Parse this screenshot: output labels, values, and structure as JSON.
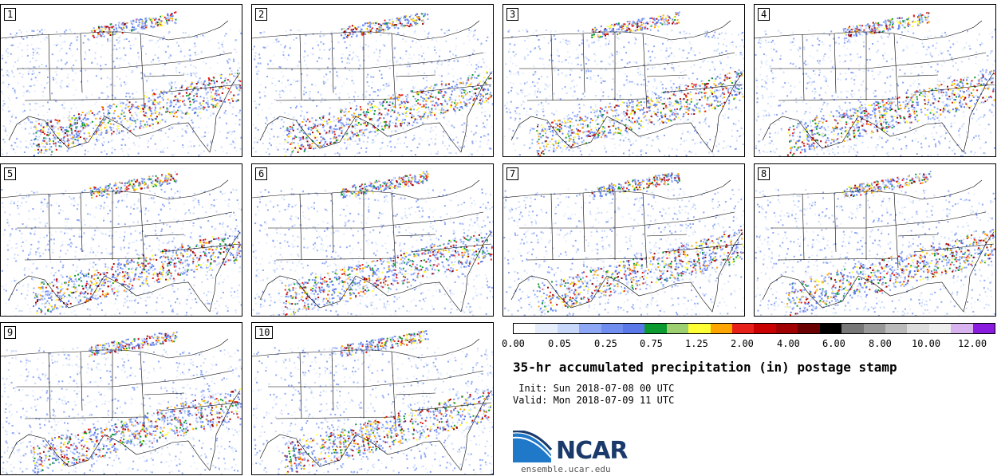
{
  "stamps": [
    {
      "label": "1"
    },
    {
      "label": "2"
    },
    {
      "label": "3"
    },
    {
      "label": "4"
    },
    {
      "label": "5"
    },
    {
      "label": "6"
    },
    {
      "label": "7"
    },
    {
      "label": "8"
    },
    {
      "label": "9"
    },
    {
      "label": "10"
    }
  ],
  "colorbar": {
    "colors": [
      "#ffffff",
      "#e6eefc",
      "#c8d8fa",
      "#8fa8f5",
      "#6f8ef0",
      "#5a78e8",
      "#0a9a30",
      "#9dd070",
      "#ffff33",
      "#ffa500",
      "#e8201a",
      "#c80000",
      "#a00000",
      "#6a0000",
      "#000000",
      "#777777",
      "#999999",
      "#bbbbbb",
      "#dddddd",
      "#eeeeee",
      "#d9b3f0",
      "#8a1ce0"
    ],
    "tick_labels": [
      "0.00",
      "0.05",
      "0.25",
      "0.75",
      "1.25",
      "2.00",
      "4.00",
      "6.00",
      "8.00",
      "10.00",
      "12.00"
    ]
  },
  "title": "35-hr accumulated precipitation (in) postage stamp",
  "init": " Init: Sun 2018-07-08 00 UTC",
  "valid": "Valid: Mon 2018-07-09 11 UTC",
  "logo_text": "NCAR",
  "site": "ensemble.ucar.edu"
}
